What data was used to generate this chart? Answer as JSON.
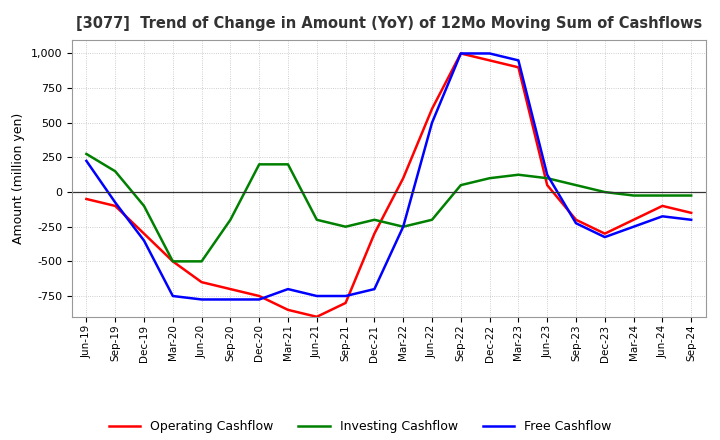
{
  "title": "[3077]  Trend of Change in Amount (YoY) of 12Mo Moving Sum of Cashflows",
  "ylabel": "Amount (million yen)",
  "x_labels": [
    "Jun-19",
    "Sep-19",
    "Dec-19",
    "Mar-20",
    "Jun-20",
    "Sep-20",
    "Dec-20",
    "Mar-21",
    "Jun-21",
    "Sep-21",
    "Dec-21",
    "Mar-22",
    "Jun-22",
    "Sep-22",
    "Dec-22",
    "Mar-23",
    "Jun-23",
    "Sep-23",
    "Dec-23",
    "Mar-24",
    "Jun-24",
    "Sep-24"
  ],
  "operating": [
    -50,
    -100,
    -300,
    -500,
    -650,
    -700,
    -750,
    -850,
    -900,
    -800,
    -300,
    100,
    600,
    1000,
    950,
    900,
    50,
    -200,
    -300,
    -200,
    -100,
    -150
  ],
  "investing": [
    275,
    150,
    -100,
    -500,
    -500,
    -200,
    200,
    200,
    -200,
    -250,
    -200,
    -250,
    -200,
    50,
    100,
    125,
    100,
    50,
    0,
    -25,
    -25,
    -25
  ],
  "free": [
    225,
    -75,
    -350,
    -750,
    -775,
    -775,
    -775,
    -700,
    -750,
    -750,
    -700,
    -250,
    500,
    1000,
    1000,
    950,
    125,
    -225,
    -325,
    -250,
    -175,
    -200
  ],
  "operating_color": "#ff0000",
  "investing_color": "#008000",
  "free_color": "#0000ff",
  "ylim": [
    -900,
    1100
  ],
  "yticks": [
    -750,
    -500,
    -250,
    0,
    250,
    500,
    750,
    1000
  ],
  "background_color": "#ffffff",
  "grid_color": "#c0c0c0"
}
